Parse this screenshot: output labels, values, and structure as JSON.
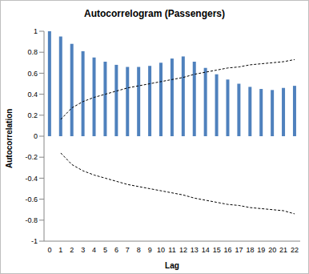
{
  "chart_data": {
    "type": "bar",
    "title": "Autocorrelogram (Passengers)",
    "x_label": "Lag",
    "y_label": "Autocorrelation",
    "categories": [
      "0",
      "1",
      "2",
      "3",
      "4",
      "5",
      "6",
      "7",
      "8",
      "9",
      "10",
      "11",
      "12",
      "13",
      "14",
      "15",
      "16",
      "17",
      "18",
      "19",
      "20",
      "21",
      "22"
    ],
    "series": [
      {
        "type": "bar",
        "color": "#4f81bd",
        "values": [
          1.0,
          0.95,
          0.88,
          0.81,
          0.75,
          0.71,
          0.68,
          0.66,
          0.66,
          0.67,
          0.7,
          0.74,
          0.76,
          0.71,
          0.65,
          0.59,
          0.54,
          0.5,
          0.47,
          0.45,
          0.44,
          0.46,
          0.48
        ]
      },
      {
        "type": "line",
        "color": "#000000",
        "line_style": "dashed",
        "values": [
          null,
          0.16,
          0.27,
          0.33,
          0.37,
          0.4,
          0.43,
          0.46,
          0.48,
          0.5,
          0.52,
          0.54,
          0.56,
          0.59,
          0.61,
          0.63,
          0.65,
          0.66,
          0.68,
          0.69,
          0.7,
          0.71,
          0.73
        ]
      },
      {
        "type": "line",
        "color": "#000000",
        "line_style": "dashed",
        "values": [
          null,
          -0.16,
          -0.27,
          -0.33,
          -0.37,
          -0.4,
          -0.43,
          -0.46,
          -0.48,
          -0.5,
          -0.52,
          -0.54,
          -0.56,
          -0.59,
          -0.61,
          -0.63,
          -0.65,
          -0.66,
          -0.68,
          -0.69,
          -0.7,
          -0.71,
          -0.74
        ]
      }
    ],
    "ylim": [
      -1,
      1
    ],
    "yticks": [
      -1,
      -0.8,
      -0.6,
      -0.4,
      -0.2,
      0,
      0.2,
      0.4,
      0.6,
      0.8,
      1
    ],
    "grid": false
  }
}
